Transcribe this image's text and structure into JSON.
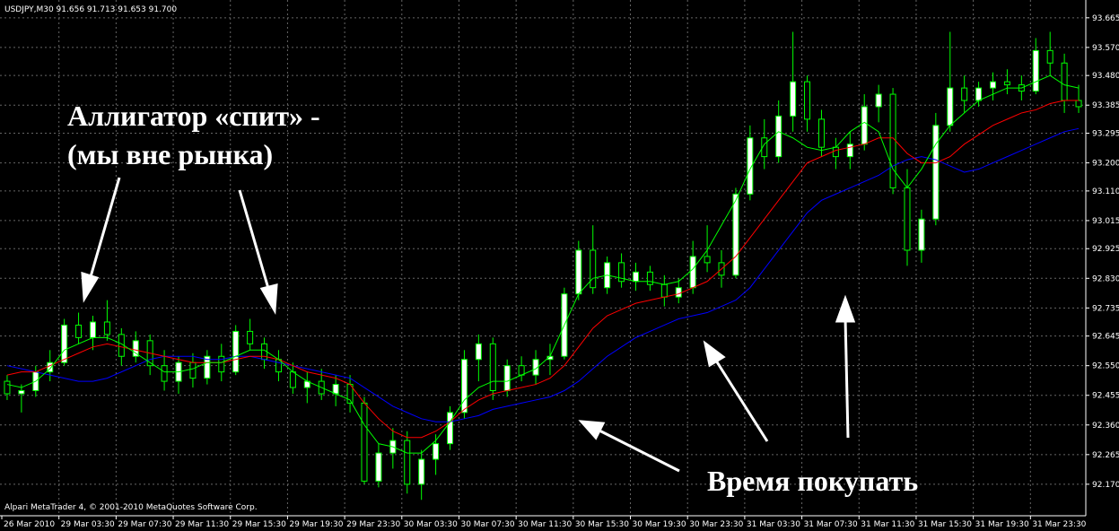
{
  "chart_data": {
    "type": "candlestick",
    "title": "USDJPY,M30  91.656 91.713 91.653 91.700",
    "footer": "Alpari MetaTrader 4, © 2001-2010 MetaQuotes Software Corp.",
    "annotations": [
      "Аллигатор «спит» -",
      "(мы вне рынка)",
      "Время покупать"
    ],
    "x_labels": [
      "26 Mar 2010",
      "29 Mar 03:30",
      "29 Mar 07:30",
      "29 Mar 11:30",
      "29 Mar 15:30",
      "29 Mar 19:30",
      "29 Mar 23:30",
      "30 Mar 03:30",
      "30 Mar 07:30",
      "30 Mar 11:30",
      "30 Mar 15:30",
      "30 Mar 19:30",
      "30 Mar 23:30",
      "31 Mar 03:30",
      "31 Mar 07:30",
      "31 Mar 11:30",
      "31 Mar 15:30",
      "31 Mar 19:30",
      "31 Mar 23:30"
    ],
    "open": [
      92.5,
      92.46,
      92.47,
      92.53,
      92.56,
      92.68,
      92.64,
      92.69,
      92.65,
      92.58,
      92.63,
      92.55,
      92.5,
      92.56,
      92.51,
      92.58,
      92.53,
      92.66,
      92.62,
      92.57,
      92.53,
      92.48,
      92.5,
      92.46,
      92.49,
      92.43,
      92.18,
      92.27,
      92.31,
      92.17,
      92.25,
      92.3,
      92.4,
      92.57,
      92.62,
      92.47,
      92.55,
      92.52,
      92.57,
      92.58,
      92.78,
      92.92,
      92.8,
      92.88,
      92.82,
      92.85,
      92.81,
      92.77,
      92.8,
      92.9,
      92.88,
      92.84,
      93.1,
      93.28,
      93.22,
      93.35,
      93.46,
      93.34,
      93.25,
      93.22,
      93.26,
      93.38,
      93.42,
      93.12,
      92.92,
      93.02,
      93.32,
      93.44,
      93.4,
      93.44,
      93.46,
      93.45,
      93.43,
      93.56,
      93.52,
      93.4
    ],
    "high": [
      92.52,
      92.49,
      92.55,
      92.6,
      92.7,
      92.72,
      92.71,
      92.76,
      92.67,
      92.66,
      92.65,
      92.6,
      92.58,
      92.59,
      92.6,
      92.62,
      92.68,
      92.7,
      92.64,
      92.6,
      92.56,
      92.53,
      92.54,
      92.52,
      92.52,
      92.45,
      92.3,
      92.35,
      92.34,
      92.28,
      92.33,
      92.42,
      92.6,
      92.65,
      92.64,
      92.57,
      92.58,
      92.6,
      92.62,
      92.8,
      92.95,
      93.0,
      92.9,
      92.91,
      92.88,
      92.87,
      92.84,
      92.83,
      92.95,
      93.0,
      92.92,
      93.12,
      93.32,
      93.34,
      93.4,
      93.62,
      93.48,
      93.37,
      93.28,
      93.3,
      93.42,
      93.45,
      93.44,
      93.18,
      93.05,
      93.36,
      93.62,
      93.48,
      93.46,
      93.49,
      93.5,
      93.48,
      93.6,
      93.62,
      93.55,
      93.45
    ],
    "low": [
      92.44,
      92.4,
      92.45,
      92.5,
      92.55,
      92.62,
      92.6,
      92.63,
      92.55,
      92.56,
      92.52,
      92.47,
      92.46,
      92.48,
      92.49,
      92.5,
      92.52,
      92.6,
      92.54,
      92.5,
      92.46,
      92.43,
      92.44,
      92.42,
      92.4,
      92.17,
      92.16,
      92.22,
      92.14,
      92.12,
      92.2,
      92.28,
      92.38,
      92.5,
      92.44,
      92.45,
      92.5,
      92.49,
      92.52,
      92.57,
      92.76,
      92.78,
      92.78,
      92.8,
      92.79,
      92.79,
      92.74,
      92.75,
      92.78,
      92.85,
      92.8,
      92.83,
      93.08,
      93.18,
      93.2,
      93.3,
      93.3,
      93.22,
      93.18,
      93.18,
      93.24,
      93.33,
      93.1,
      92.87,
      92.88,
      93.0,
      93.3,
      93.36,
      93.38,
      93.4,
      93.42,
      93.4,
      93.42,
      93.48,
      93.36,
      93.36
    ],
    "close": [
      92.46,
      92.47,
      92.53,
      92.56,
      92.68,
      92.64,
      92.69,
      92.65,
      92.58,
      92.63,
      92.55,
      92.5,
      92.56,
      92.51,
      92.58,
      92.53,
      92.66,
      92.62,
      92.57,
      92.53,
      92.48,
      92.5,
      92.46,
      92.49,
      92.43,
      92.18,
      92.27,
      92.31,
      92.17,
      92.25,
      92.3,
      92.4,
      92.57,
      92.62,
      92.47,
      92.55,
      92.52,
      92.57,
      92.58,
      92.78,
      92.92,
      92.8,
      92.88,
      92.82,
      92.85,
      92.81,
      92.77,
      92.8,
      92.9,
      92.88,
      92.84,
      93.1,
      93.28,
      93.22,
      93.35,
      93.46,
      93.34,
      93.25,
      93.22,
      93.26,
      93.38,
      93.42,
      93.12,
      92.92,
      93.02,
      93.32,
      93.44,
      93.4,
      93.44,
      93.46,
      93.45,
      93.43,
      93.56,
      93.52,
      93.4,
      93.38
    ],
    "bull_color": "#ffffff",
    "bear_color": "#000000",
    "candle_color": "#00ff00",
    "series": [
      {
        "color": "#0000ff",
        "values": [
          92.55,
          92.54,
          92.53,
          92.52,
          92.51,
          92.5,
          92.5,
          92.51,
          92.53,
          92.55,
          92.57,
          92.58,
          92.58,
          92.58,
          92.57,
          92.57,
          92.58,
          92.58,
          92.57,
          92.56,
          92.55,
          92.54,
          92.53,
          92.52,
          92.51,
          92.48,
          92.45,
          92.42,
          92.4,
          92.38,
          92.37,
          92.37,
          92.38,
          92.39,
          92.41,
          92.42,
          92.43,
          92.44,
          92.45,
          92.47,
          92.5,
          92.54,
          92.58,
          92.61,
          92.64,
          92.66,
          92.68,
          92.7,
          92.71,
          92.72,
          92.74,
          92.76,
          92.8,
          92.86,
          92.92,
          92.98,
          93.04,
          93.08,
          93.1,
          93.12,
          93.14,
          93.16,
          93.19,
          93.21,
          93.22,
          93.21,
          93.19,
          93.17,
          93.18,
          93.2,
          93.22,
          93.24,
          93.26,
          93.28,
          93.3,
          93.31
        ]
      },
      {
        "color": "#ff0000",
        "values": [
          92.52,
          92.53,
          92.53,
          92.55,
          92.57,
          92.59,
          92.61,
          92.62,
          92.61,
          92.6,
          92.59,
          92.58,
          92.57,
          92.56,
          92.56,
          92.56,
          92.57,
          92.58,
          92.58,
          92.57,
          92.55,
          92.53,
          92.52,
          92.51,
          92.49,
          92.43,
          92.38,
          92.34,
          92.32,
          92.32,
          92.34,
          92.37,
          92.41,
          92.44,
          92.46,
          92.47,
          92.48,
          92.49,
          92.51,
          92.55,
          92.61,
          92.67,
          92.71,
          92.73,
          92.75,
          92.76,
          92.77,
          92.78,
          92.8,
          92.82,
          92.86,
          92.9,
          92.96,
          93.02,
          93.08,
          93.14,
          93.2,
          93.22,
          93.24,
          93.25,
          93.26,
          93.28,
          93.28,
          93.23,
          93.2,
          93.2,
          93.22,
          93.26,
          93.29,
          93.32,
          93.34,
          93.36,
          93.37,
          93.39,
          93.4,
          93.4
        ]
      },
      {
        "color": "#00ff00",
        "values": [
          92.49,
          92.48,
          92.5,
          92.54,
          92.6,
          92.62,
          92.64,
          92.64,
          92.62,
          92.59,
          92.56,
          92.53,
          92.53,
          92.54,
          92.56,
          92.56,
          92.58,
          92.6,
          92.6,
          92.57,
          92.53,
          92.5,
          92.48,
          92.46,
          92.44,
          92.36,
          92.3,
          92.29,
          92.27,
          92.27,
          92.31,
          92.37,
          92.44,
          92.48,
          92.5,
          92.5,
          92.52,
          92.54,
          92.58,
          92.68,
          92.78,
          92.83,
          92.84,
          92.83,
          92.82,
          92.82,
          92.81,
          92.82,
          92.86,
          92.92,
          93.0,
          93.08,
          93.18,
          93.26,
          93.3,
          93.28,
          93.25,
          93.24,
          93.25,
          93.3,
          93.33,
          93.3,
          93.18,
          93.12,
          93.18,
          93.26,
          93.32,
          93.36,
          93.4,
          93.42,
          93.44,
          93.44,
          93.46,
          93.48,
          93.45,
          93.44
        ]
      }
    ],
    "ylim": [
      92.069,
      93.722
    ],
    "yticks": [
      93.665,
      {
        "value": 93.57,
        "label": "93.570"
      },
      {
        "value": 93.48,
        "label": "93.480"
      },
      93.385,
      93.295,
      {
        "value": 93.2,
        "label": "93.200"
      },
      {
        "value": 93.11,
        "label": "93.110"
      },
      93.015,
      92.925,
      {
        "value": 92.83,
        "label": "92.830"
      },
      92.735,
      92.645,
      {
        "value": 92.55,
        "label": "92.550"
      },
      92.455,
      {
        "value": 92.36,
        "label": "92.360"
      },
      92.265,
      {
        "value": 92.17,
        "label": "92.170"
      }
    ],
    "grid": true
  }
}
